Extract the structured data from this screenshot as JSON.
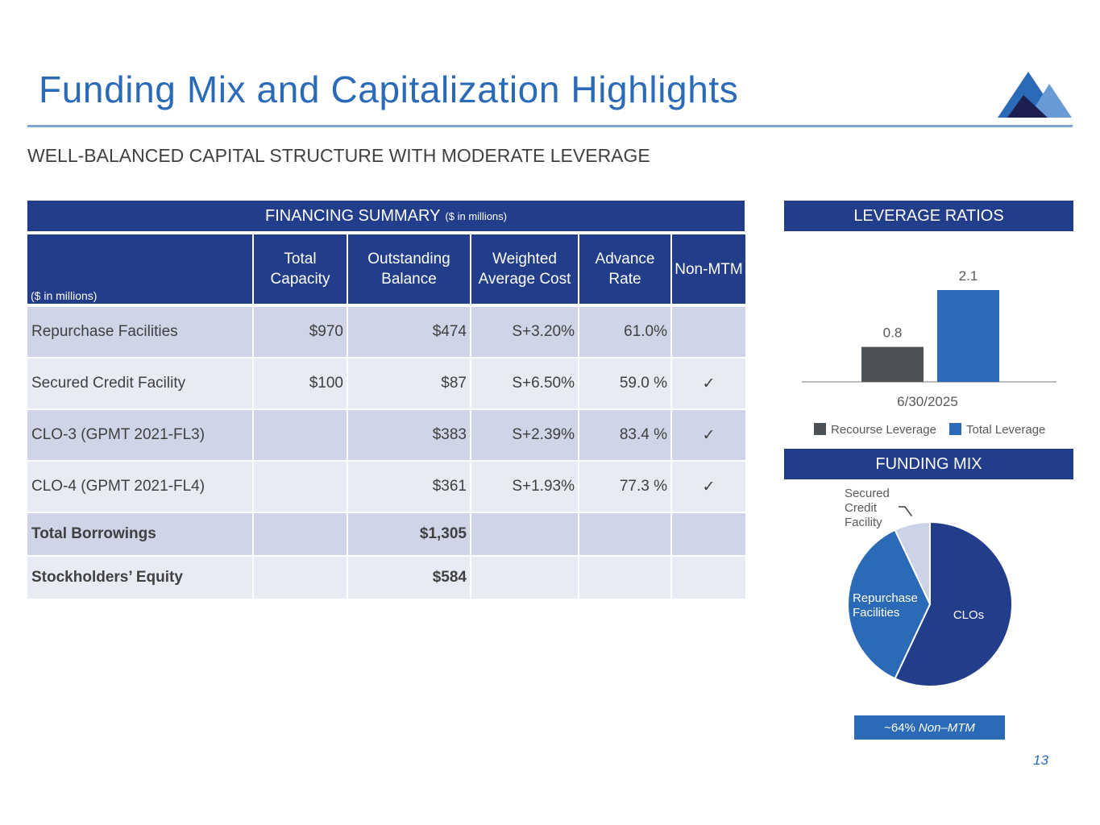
{
  "title": "Funding Mix and Capitalization Highlights",
  "subtitle": "WELL-BALANCED CAPITAL STRUCTURE WITH MODERATE LEVERAGE",
  "colors": {
    "navy": "#223e8b",
    "accent_blue": "#2a6ab7",
    "dark_gray": "#4d5256",
    "light_gray": "#cdd3e6"
  },
  "financing": {
    "header": "FINANCING SUMMARY",
    "header_units": "($ in millions)",
    "units_label": "($ in millions)",
    "columns": [
      "Total Capacity",
      "Outstanding Balance",
      "Weighted Average Cost",
      "Advance Rate",
      "Non-MTM"
    ],
    "rows": [
      {
        "name": "Repurchase Facilities",
        "capacity": "$970",
        "balance": "$474",
        "cost": "S+3.20%",
        "advance": "61.0%",
        "non_mtm": ""
      },
      {
        "name": "Secured Credit Facility",
        "capacity": "$100",
        "balance": "$87",
        "cost": "S+6.50%",
        "advance": "59.0 %",
        "non_mtm": "✓"
      },
      {
        "name": "CLO-3 (GPMT 2021-FL3)",
        "capacity": "",
        "balance": "$383",
        "cost": "S+2.39%",
        "advance": "83.4 %",
        "non_mtm": "✓"
      },
      {
        "name": "CLO-4 (GPMT 2021-FL4)",
        "capacity": "",
        "balance": "$361",
        "cost": "S+1.93%",
        "advance": "77.3 %",
        "non_mtm": "✓"
      }
    ],
    "totals": [
      {
        "name": "Total Borrowings",
        "balance": "$1,305"
      },
      {
        "name": "Stockholders’ Equity",
        "balance": "$584"
      }
    ]
  },
  "leverage": {
    "header": "LEVERAGE RATIOS"
  },
  "funding": {
    "header": "FUNDING MIX",
    "non_mtm_pct": "~64%",
    "non_mtm_label": "Non–MTM"
  },
  "page_number": "13",
  "chart_data": [
    {
      "type": "bar",
      "title": "LEVERAGE RATIOS",
      "categories": [
        "6/30/2025"
      ],
      "series": [
        {
          "name": "Recourse Leverage",
          "values": [
            0.8
          ],
          "color": "#4d5256"
        },
        {
          "name": "Total Leverage",
          "values": [
            2.1
          ],
          "color": "#2a6ab7"
        }
      ],
      "ylim": [
        0,
        2.1
      ],
      "legend": "bottom"
    },
    {
      "type": "pie",
      "title": "FUNDING MIX",
      "slices": [
        {
          "label": "CLOs",
          "value": 57,
          "color": "#223e8b"
        },
        {
          "label": "Repurchase Facilities",
          "value": 36,
          "color": "#2a6ab7"
        },
        {
          "label": "Secured Credit Facility",
          "value": 7,
          "color": "#cdd3e6"
        }
      ],
      "label_lines": {
        "repurchase": [
          "Repurchase",
          "Facilities"
        ],
        "secured": [
          "Secured",
          "Credit",
          "Facility"
        ]
      }
    }
  ]
}
